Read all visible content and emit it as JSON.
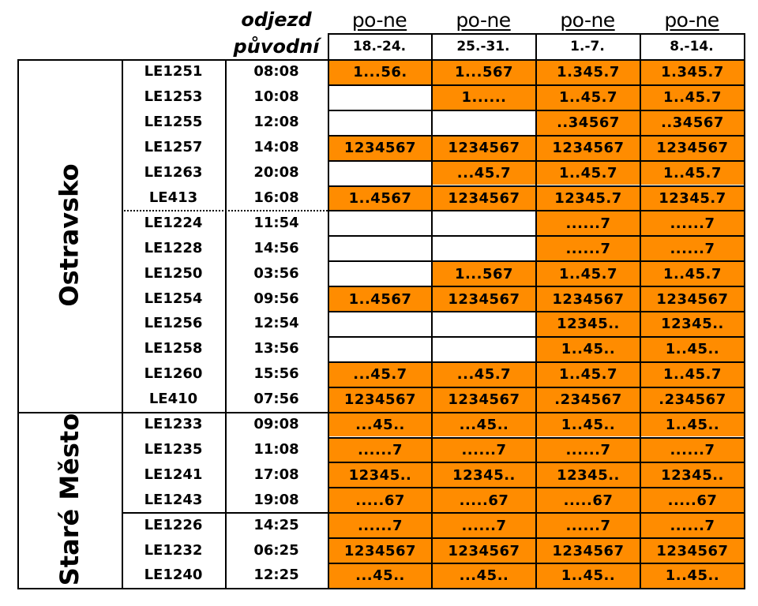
{
  "header": {
    "departure_label": "odjezd",
    "original_label": "původní",
    "day_label": "po-ne",
    "weeks": [
      "18.-24.",
      "25.-31.",
      "1.-7.",
      "8.-14."
    ]
  },
  "groups": [
    {
      "label": "Ostravsko",
      "start": 0,
      "end": 14
    },
    {
      "label": "Staré Město",
      "start": 14,
      "end": 21
    }
  ],
  "rows": [
    {
      "train": "LE1251",
      "time": "08:08",
      "days": [
        "1...56.",
        "1...567",
        "1.345.7",
        "1.345.7"
      ]
    },
    {
      "train": "LE1253",
      "time": "10:08",
      "days": [
        "",
        "1......",
        "1..45.7",
        "1..45.7"
      ]
    },
    {
      "train": "LE1255",
      "time": "12:08",
      "days": [
        "",
        "",
        "..34567",
        "..34567"
      ]
    },
    {
      "train": "LE1257",
      "time": "14:08",
      "days": [
        "1234567",
        "1234567",
        "1234567",
        "1234567"
      ]
    },
    {
      "train": "LE1263",
      "time": "20:08",
      "days": [
        "",
        "...45.7",
        "1..45.7",
        "1..45.7"
      ]
    },
    {
      "train": "LE413",
      "time": "16:08",
      "days": [
        "1..4567",
        "1234567",
        "12345.7",
        "12345.7"
      ]
    },
    {
      "train": "LE1224",
      "time": "11:54",
      "days": [
        "",
        "",
        "......7",
        "......7"
      ]
    },
    {
      "train": "LE1228",
      "time": "14:56",
      "days": [
        "",
        "",
        "......7",
        "......7"
      ]
    },
    {
      "train": "LE1250",
      "time": "03:56",
      "days": [
        "",
        "1...567",
        "1..45.7",
        "1..45.7"
      ]
    },
    {
      "train": "LE1254",
      "time": "09:56",
      "days": [
        "1..4567",
        "1234567",
        "1234567",
        "1234567"
      ]
    },
    {
      "train": "LE1256",
      "time": "12:54",
      "days": [
        "",
        "",
        "12345..",
        "12345.."
      ]
    },
    {
      "train": "LE1258",
      "time": "13:56",
      "days": [
        "",
        "",
        "1..45..",
        "1..45.."
      ]
    },
    {
      "train": "LE1260",
      "time": "15:56",
      "days": [
        "...45.7",
        "...45.7",
        "1..45.7",
        "1..45.7"
      ]
    },
    {
      "train": "LE410",
      "time": "07:56",
      "days": [
        "1234567",
        "1234567",
        ".234567",
        ".234567"
      ]
    },
    {
      "train": "LE1233",
      "time": "09:08",
      "days": [
        "...45..",
        "...45..",
        "1..45..",
        "1..45.."
      ]
    },
    {
      "train": "LE1235",
      "time": "11:08",
      "days": [
        "......7",
        "......7",
        "......7",
        "......7"
      ]
    },
    {
      "train": "LE1241",
      "time": "17:08",
      "days": [
        "12345..",
        "12345..",
        "12345..",
        "12345.."
      ]
    },
    {
      "train": "LE1243",
      "time": "19:08",
      "days": [
        ".....67",
        ".....67",
        ".....67",
        ".....67"
      ]
    },
    {
      "train": "LE1226",
      "time": "14:25",
      "days": [
        "......7",
        "......7",
        "......7",
        "......7"
      ]
    },
    {
      "train": "LE1232",
      "time": "06:25",
      "days": [
        "1234567",
        "1234567",
        "1234567",
        "1234567"
      ]
    },
    {
      "train": "LE1240",
      "time": "12:25",
      "days": [
        "...45..",
        "...45..",
        "1..45..",
        "1..45.."
      ]
    }
  ],
  "colors": {
    "active_cell": "#ff8c00",
    "border": "#000000"
  }
}
